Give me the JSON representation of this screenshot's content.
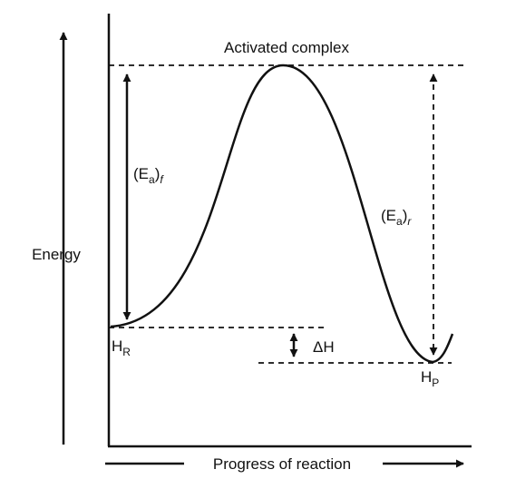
{
  "diagram": {
    "peak_label": "Activated complex",
    "y_axis_label": "Energy",
    "x_axis_label": "Progress of reaction",
    "ea_forward": {
      "base": "(E",
      "sub": "a",
      "close": ")",
      "suffix": "f"
    },
    "ea_reverse": {
      "base": "(E",
      "sub": "a",
      "close": ")",
      "suffix": "r"
    },
    "reactant_label": {
      "base": "H",
      "sub": "R"
    },
    "product_label": {
      "base": "H",
      "sub": "P"
    },
    "delta_h_label": "ΔH",
    "colors": {
      "ink": "#111111",
      "background": "#ffffff"
    }
  }
}
